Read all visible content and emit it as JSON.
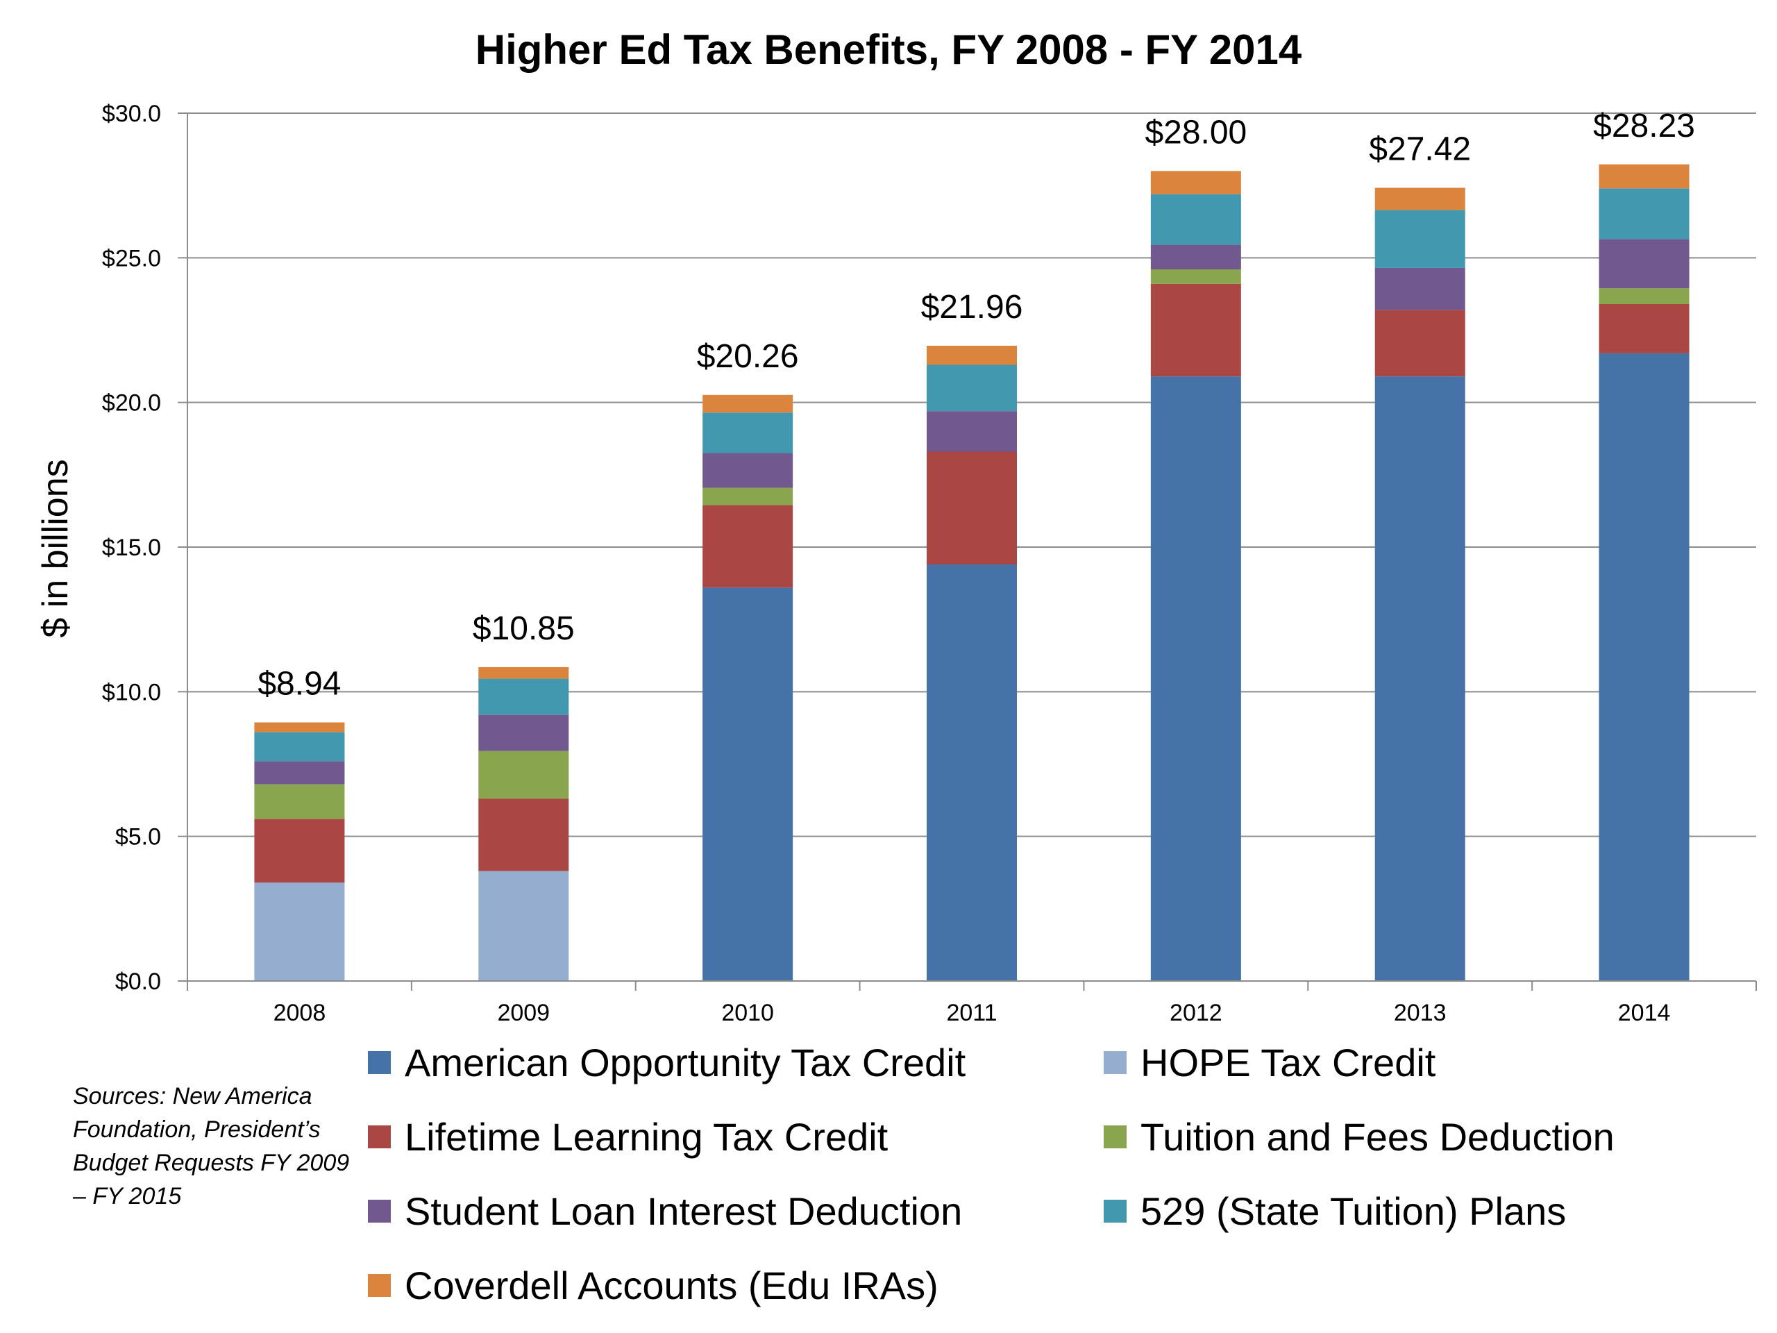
{
  "chart_data": {
    "type": "bar",
    "stacked": true,
    "title": "Higher Ed Tax Benefits, FY 2008 - FY 2014",
    "xlabel": "",
    "ylabel": "$ in billions",
    "ylim": [
      0,
      30
    ],
    "yticks": [
      0,
      5,
      10,
      15,
      20,
      25,
      30
    ],
    "ytick_labels": [
      "$0.0",
      "$5.0",
      "$10.0",
      "$15.0",
      "$20.0",
      "$25.0",
      "$30.0"
    ],
    "grid": true,
    "legend_position": "bottom",
    "categories": [
      "2008",
      "2009",
      "2010",
      "2011",
      "2012",
      "2013",
      "2014"
    ],
    "totals_labels": [
      "$8.94",
      "$10.85",
      "$20.26",
      "$21.96",
      "$28.00",
      "$27.42",
      "$28.23"
    ],
    "series": [
      {
        "name": "HOPE Tax Credit",
        "color": "#95AECF",
        "values": [
          3.4,
          3.8,
          0,
          0,
          0,
          0,
          0
        ]
      },
      {
        "name": "American Opportunity Tax Credit",
        "color": "#4572A7",
        "values": [
          0,
          0,
          13.6,
          14.4,
          20.9,
          20.9,
          21.7
        ]
      },
      {
        "name": "Lifetime Learning Tax Credit",
        "color": "#AA4643",
        "values": [
          2.2,
          2.5,
          2.85,
          3.9,
          3.2,
          2.3,
          1.7
        ]
      },
      {
        "name": "Tuition and Fees Deduction",
        "color": "#89A54E",
        "values": [
          1.2,
          1.65,
          0.6,
          0,
          0.5,
          0,
          0.55
        ]
      },
      {
        "name": "Student Loan Interest Deduction",
        "color": "#71588F",
        "values": [
          0.8,
          1.25,
          1.2,
          1.4,
          0.85,
          1.45,
          1.7
        ]
      },
      {
        "name": "529 (State Tuition) Plans",
        "color": "#4198AF",
        "values": [
          1.0,
          1.25,
          1.4,
          1.6,
          1.75,
          2.0,
          1.75
        ]
      },
      {
        "name": "Coverdell Accounts (Edu IRAs)",
        "color": "#DB843D",
        "values": [
          0.34,
          0.4,
          0.61,
          0.66,
          0.8,
          0.77,
          0.83
        ]
      }
    ]
  },
  "legend": {
    "items": [
      {
        "label": "American Opportunity Tax Credit",
        "color": "#4572A7"
      },
      {
        "label": "HOPE Tax Credit",
        "color": "#95AECF"
      },
      {
        "label": "Lifetime Learning Tax Credit",
        "color": "#AA4643"
      },
      {
        "label": "Tuition and Fees Deduction",
        "color": "#89A54E"
      },
      {
        "label": "Student Loan Interest Deduction",
        "color": "#71588F"
      },
      {
        "label": "529 (State Tuition) Plans",
        "color": "#4198AF"
      },
      {
        "label": "Coverdell Accounts (Edu IRAs)",
        "color": "#DB843D"
      }
    ]
  },
  "source_note": "Sources: New America Foundation, President’s Budget Requests FY 2009 – FY 2015"
}
